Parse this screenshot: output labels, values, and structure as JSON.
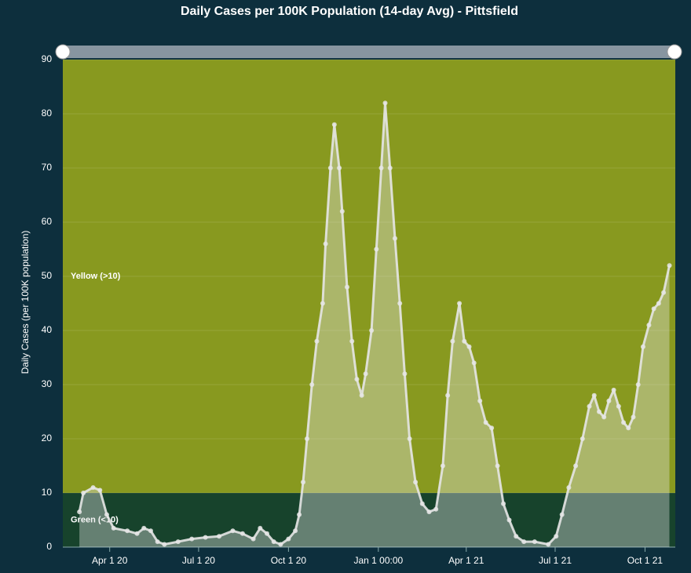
{
  "chart_data": {
    "type": "area",
    "title": "Daily Cases per 100K Population (14-day Avg) - Pittsfield",
    "y_label": "Daily Cases (per 100K population)",
    "background": "#0d2f3d",
    "color": "#e6e6e6",
    "ylim": [
      0,
      90
    ],
    "yticks": [
      0,
      10,
      20,
      30,
      40,
      50,
      60,
      70,
      80,
      90
    ],
    "xlim": [
      "2020-02-13",
      "2021-11-01"
    ],
    "xticks": [
      {
        "value": "2020-04-01",
        "label": "Apr 1 20"
      },
      {
        "value": "2020-07-01",
        "label": "Jul 1 20"
      },
      {
        "value": "2020-10-01",
        "label": "Oct 1 20"
      },
      {
        "value": "2021-01-01",
        "label": "Jan 1 00:00"
      },
      {
        "value": "2021-04-01",
        "label": "Apr 1 21"
      },
      {
        "value": "2021-07-01",
        "label": "Jul 1 21"
      },
      {
        "value": "2021-10-01",
        "label": "Oct 1 21"
      }
    ],
    "bands": [
      {
        "from": 0,
        "to": 10,
        "label": "Green (<10)",
        "color": "#17432c"
      },
      {
        "from": 10,
        "to": 90,
        "label": "Yellow (>10)",
        "color": "#88991f"
      }
    ],
    "x": [
      "2020-03-01",
      "2020-03-05",
      "2020-03-15",
      "2020-03-22",
      "2020-03-29",
      "2020-04-05",
      "2020-04-19",
      "2020-04-29",
      "2020-05-06",
      "2020-05-13",
      "2020-05-20",
      "2020-05-27",
      "2020-06-10",
      "2020-06-24",
      "2020-07-08",
      "2020-07-22",
      "2020-08-05",
      "2020-08-15",
      "2020-08-26",
      "2020-09-02",
      "2020-09-09",
      "2020-09-16",
      "2020-09-23",
      "2020-10-01",
      "2020-10-08",
      "2020-10-12",
      "2020-10-16",
      "2020-10-20",
      "2020-10-25",
      "2020-10-30",
      "2020-11-05",
      "2020-11-08",
      "2020-11-13",
      "2020-11-17",
      "2020-11-22",
      "2020-11-25",
      "2020-11-30",
      "2020-12-05",
      "2020-12-10",
      "2020-12-15",
      "2020-12-19",
      "2020-12-25",
      "2020-12-30",
      "2021-01-04",
      "2021-01-08",
      "2021-01-13",
      "2021-01-18",
      "2021-01-23",
      "2021-01-28",
      "2021-02-02",
      "2021-02-08",
      "2021-02-15",
      "2021-02-22",
      "2021-03-01",
      "2021-03-08",
      "2021-03-13",
      "2021-03-18",
      "2021-03-25",
      "2021-03-30",
      "2021-04-04",
      "2021-04-09",
      "2021-04-15",
      "2021-04-21",
      "2021-04-27",
      "2021-05-03",
      "2021-05-09",
      "2021-05-15",
      "2021-05-22",
      "2021-05-30",
      "2021-06-10",
      "2021-06-24",
      "2021-07-02",
      "2021-07-08",
      "2021-07-15",
      "2021-07-22",
      "2021-07-29",
      "2021-08-05",
      "2021-08-10",
      "2021-08-15",
      "2021-08-20",
      "2021-08-25",
      "2021-08-30",
      "2021-09-04",
      "2021-09-09",
      "2021-09-14",
      "2021-09-19",
      "2021-09-24",
      "2021-09-29",
      "2021-10-05",
      "2021-10-10",
      "2021-10-15",
      "2021-10-20",
      "2021-10-26"
    ],
    "values": [
      6.5,
      10,
      11,
      10.5,
      6,
      3.5,
      3,
      2.5,
      3.5,
      3,
      1,
      0.5,
      1,
      1.5,
      1.8,
      2,
      3,
      2.5,
      1.5,
      3.5,
      2.5,
      1,
      0.5,
      1.5,
      3,
      6,
      12,
      20,
      30,
      38,
      45,
      56,
      70,
      78,
      70,
      62,
      48,
      38,
      31,
      28,
      32,
      40,
      55,
      70,
      82,
      70,
      57,
      45,
      32,
      20,
      12,
      8,
      6.5,
      7,
      15,
      28,
      38,
      45,
      38,
      37,
      34,
      27,
      23,
      22,
      15,
      8,
      5,
      2,
      1,
      1,
      0.5,
      2,
      6,
      11,
      15,
      20,
      26,
      28,
      25,
      24,
      27,
      29,
      26,
      23,
      22,
      24,
      30,
      37,
      41,
      44,
      45,
      47,
      52
    ]
  }
}
